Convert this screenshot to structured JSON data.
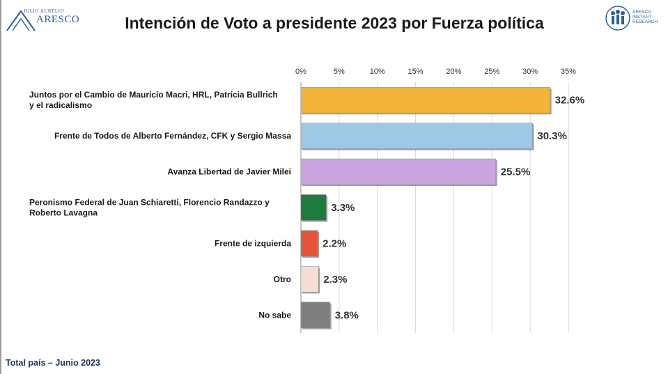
{
  "header": {
    "title": "Intención de Voto a presidente 2023 por Fuerza política"
  },
  "logos": {
    "left_small": "JULIO AURELIO",
    "left_big": "ARESCO",
    "right_lines": [
      "ARESCO",
      "INSTANT",
      "RESEARCH"
    ]
  },
  "footer": {
    "note": "Total país – Junio 2023"
  },
  "chart_data": {
    "type": "bar",
    "orientation": "horizontal",
    "title": "Intención de Voto a presidente 2023 por Fuerza política",
    "categories": [
      [
        "Juntos por el Cambio de Mauricio Macri, HRL, Patricia Bullrich",
        "y el radicalismo"
      ],
      [
        "Frente de Todos de Alberto Fernández, CFK y Sergio Massa"
      ],
      [
        "Avanza Libertad de Javier Milei"
      ],
      [
        "Peronismo Federal de Juan Schiaretti, Florencio Randazzo y",
        "Roberto Lavagna"
      ],
      [
        "Frente de izquierda"
      ],
      [
        "Otro"
      ],
      [
        "No sabe"
      ]
    ],
    "values": [
      32.6,
      30.3,
      25.5,
      3.3,
      2.2,
      2.3,
      3.8
    ],
    "value_labels": [
      "32.6%",
      "30.3%",
      "25.5%",
      "3.3%",
      "2.2%",
      "2.3%",
      "3.8%"
    ],
    "colors": [
      "#F2B43A",
      "#9DC8E6",
      "#C9A6E0",
      "#1E7B3C",
      "#E8543A",
      "#F6DDD6",
      "#7F7F7F"
    ],
    "x_ticks": [
      0,
      5,
      10,
      15,
      20,
      25,
      30,
      35
    ],
    "x_tick_labels": [
      "0%",
      "5%",
      "10%",
      "15%",
      "20%",
      "25%",
      "30%",
      "35%"
    ],
    "xlim": [
      0,
      35
    ],
    "axis_position": "top",
    "grid": true,
    "legend": "none",
    "xlabel": "",
    "ylabel": ""
  }
}
